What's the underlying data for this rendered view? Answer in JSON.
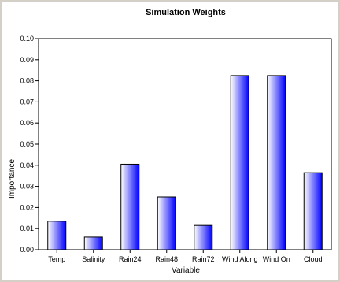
{
  "colors": {
    "window_background": "#d4d0c8",
    "plot_background": "#ffffff",
    "bar_gradient_start": "#ffffff",
    "bar_gradient_end": "#0000ff",
    "bar_outline": "#000000"
  },
  "chart_data": {
    "type": "bar",
    "title": "Simulation Weights",
    "xlabel": "Variable",
    "ylabel": "Importance",
    "categories": [
      "Temp",
      "Salinity",
      "Rain24",
      "Rain48",
      "Rain72",
      "Wind Along",
      "Wind On",
      "Cloud"
    ],
    "values": [
      0.0135,
      0.006,
      0.0405,
      0.025,
      0.0115,
      0.0825,
      0.0825,
      0.0365
    ],
    "ylim": [
      0,
      0.1
    ],
    "yticks": [
      "0.00",
      "0.01",
      "0.02",
      "0.03",
      "0.04",
      "0.05",
      "0.06",
      "0.07",
      "0.08",
      "0.09",
      "0.10"
    ],
    "grid": false,
    "legend": "none"
  }
}
